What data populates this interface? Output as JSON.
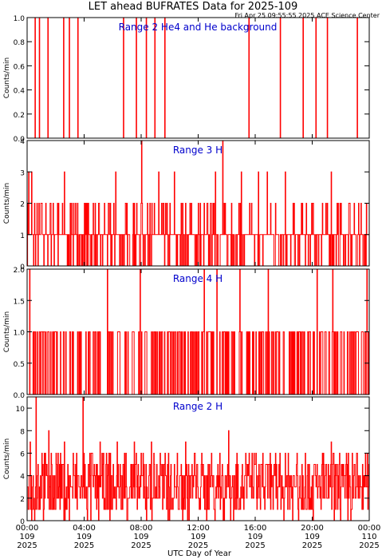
{
  "page": {
    "title": "LET ahead BUFRATES Data for 2025-109",
    "timestamp": "Fri Apr 25 09:55:55 2025 ACE Science Center",
    "xlabel": "UTC Day of Year"
  },
  "x_ticks": [
    {
      "time": "00:00",
      "day": "109",
      "year": "2025"
    },
    {
      "time": "04:00",
      "day": "109",
      "year": "2025"
    },
    {
      "time": "08:00",
      "day": "109",
      "year": "2025"
    },
    {
      "time": "12:00",
      "day": "109",
      "year": "2025"
    },
    {
      "time": "16:00",
      "day": "109",
      "year": "2025"
    },
    {
      "time": "20:00",
      "day": "109",
      "year": "2025"
    },
    {
      "time": "00:00",
      "day": "110",
      "year": "2025"
    }
  ],
  "colors": {
    "data": "#ff0000",
    "label": "#0000cc",
    "axes": "#000000"
  },
  "chart_data": [
    {
      "type": "line",
      "title": "Range 2 He4 and He background",
      "ylabel": "Counts/min",
      "ylim": [
        0,
        1.0
      ],
      "yticks": [
        "0.0",
        "0.2",
        "0.4",
        "0.6",
        "0.8",
        "1.0"
      ],
      "x_range_hours": [
        0,
        24
      ],
      "series": [
        {
          "baseline": 0,
          "spikes": [
            [
              0.55,
              1
            ],
            [
              0.85,
              1
            ],
            [
              1.45,
              1
            ],
            [
              2.55,
              1
            ],
            [
              2.95,
              1
            ],
            [
              3.55,
              1
            ],
            [
              6.75,
              1
            ],
            [
              7.65,
              1
            ],
            [
              8.35,
              1
            ],
            [
              8.95,
              1
            ],
            [
              9.65,
              1
            ],
            [
              15.55,
              1
            ],
            [
              17.75,
              1
            ],
            [
              19.35,
              1
            ],
            [
              20.25,
              1
            ],
            [
              21.05,
              1
            ],
            [
              23.15,
              1
            ]
          ]
        }
      ]
    },
    {
      "type": "line",
      "title": "Range 3 H",
      "ylabel": "Counts/min",
      "ylim": [
        0,
        4
      ],
      "yticks": [
        "0",
        "1",
        "2",
        "3",
        "4"
      ],
      "x_range_hours": [
        0,
        24
      ],
      "series": [
        {
          "baseline": 1,
          "spikes": [
            [
              0.1,
              3
            ],
            [
              0.3,
              3
            ],
            [
              0.5,
              2
            ],
            [
              1.0,
              2
            ],
            [
              1.6,
              2
            ],
            [
              2.1,
              2
            ],
            [
              2.6,
              3
            ],
            [
              3.1,
              2
            ],
            [
              3.5,
              2
            ],
            [
              4.0,
              2
            ],
            [
              4.6,
              2
            ],
            [
              5.0,
              2
            ],
            [
              5.4,
              2
            ],
            [
              6.2,
              3
            ],
            [
              6.9,
              2
            ],
            [
              7.5,
              2
            ],
            [
              8.0,
              4
            ],
            [
              8.6,
              2
            ],
            [
              9.2,
              3
            ],
            [
              9.7,
              2
            ],
            [
              10.3,
              3
            ],
            [
              10.9,
              2
            ],
            [
              11.4,
              2
            ],
            [
              12.0,
              2
            ],
            [
              12.6,
              2
            ],
            [
              13.2,
              3
            ],
            [
              13.7,
              4
            ],
            [
              14.3,
              2
            ],
            [
              15.0,
              3
            ],
            [
              15.6,
              2
            ],
            [
              16.2,
              3
            ],
            [
              16.8,
              3
            ],
            [
              17.4,
              2
            ],
            [
              18.1,
              3
            ],
            [
              18.7,
              2
            ],
            [
              19.3,
              2
            ],
            [
              20.0,
              2
            ],
            [
              20.7,
              2
            ],
            [
              21.3,
              3
            ],
            [
              22.0,
              2
            ],
            [
              22.6,
              2
            ],
            [
              23.4,
              2
            ]
          ]
        }
      ]
    },
    {
      "type": "line",
      "title": "Range 4 H",
      "ylabel": "Counts/min",
      "ylim": [
        0,
        2.0
      ],
      "yticks": [
        "0.0",
        "0.5",
        "1.0",
        "1.5",
        "2.0"
      ],
      "x_range_hours": [
        0,
        24
      ],
      "series": [
        {
          "baseline": 0,
          "spikes": [
            [
              0.15,
              2
            ],
            [
              0.4,
              1
            ],
            [
              0.7,
              1
            ],
            [
              1.1,
              1
            ],
            [
              1.5,
              1
            ],
            [
              1.9,
              1
            ],
            [
              2.3,
              1
            ],
            [
              2.7,
              1
            ],
            [
              3.2,
              1
            ],
            [
              3.7,
              1
            ],
            [
              4.1,
              1
            ],
            [
              4.6,
              1
            ],
            [
              5.0,
              1
            ],
            [
              5.6,
              2
            ],
            [
              6.0,
              1
            ],
            [
              6.4,
              1
            ],
            [
              6.9,
              1
            ],
            [
              7.4,
              1
            ],
            [
              7.9,
              2
            ],
            [
              8.3,
              1
            ],
            [
              8.8,
              1
            ],
            [
              9.3,
              1
            ],
            [
              10.0,
              1
            ],
            [
              10.5,
              1
            ],
            [
              11.0,
              1
            ],
            [
              11.5,
              1
            ],
            [
              12.0,
              1
            ],
            [
              12.4,
              2
            ],
            [
              12.9,
              1
            ],
            [
              13.3,
              2
            ],
            [
              13.8,
              1
            ],
            [
              14.3,
              1
            ],
            [
              14.9,
              2
            ],
            [
              15.6,
              1
            ],
            [
              16.3,
              1
            ],
            [
              16.9,
              2
            ],
            [
              17.5,
              1
            ],
            [
              18.0,
              1
            ],
            [
              18.6,
              1
            ],
            [
              19.1,
              1
            ],
            [
              19.7,
              1
            ],
            [
              20.3,
              2
            ],
            [
              20.9,
              1
            ],
            [
              21.4,
              2
            ],
            [
              22.0,
              1
            ],
            [
              22.6,
              1
            ],
            [
              23.2,
              1
            ],
            [
              23.8,
              2
            ]
          ]
        }
      ]
    },
    {
      "type": "line",
      "title": "Range 2 H",
      "ylabel": "Counts/min",
      "ylim": [
        0,
        11
      ],
      "yticks": [
        "0",
        "2",
        "4",
        "6",
        "8",
        "10"
      ],
      "x_range_hours": [
        0,
        24
      ],
      "series": [
        {
          "baseline": 3,
          "spikes": [
            [
              0.6,
              11
            ],
            [
              0.2,
              7
            ],
            [
              1.0,
              6
            ],
            [
              1.5,
              8
            ],
            [
              2.0,
              6
            ],
            [
              2.6,
              7
            ],
            [
              3.2,
              6
            ],
            [
              3.9,
              11
            ],
            [
              4.5,
              6
            ],
            [
              5.1,
              7
            ],
            [
              5.7,
              6
            ],
            [
              6.3,
              7
            ],
            [
              6.9,
              6
            ],
            [
              7.5,
              7
            ],
            [
              8.1,
              6
            ],
            [
              8.7,
              7
            ],
            [
              9.3,
              6
            ],
            [
              9.9,
              6
            ],
            [
              10.5,
              6
            ],
            [
              11.1,
              7
            ],
            [
              11.7,
              6
            ],
            [
              12.3,
              5
            ],
            [
              12.9,
              6
            ],
            [
              13.5,
              6
            ],
            [
              14.1,
              8
            ],
            [
              14.7,
              6
            ],
            [
              15.3,
              6
            ],
            [
              15.9,
              6
            ],
            [
              16.5,
              6
            ],
            [
              17.1,
              5
            ],
            [
              17.7,
              6
            ],
            [
              18.3,
              6
            ],
            [
              18.9,
              6
            ],
            [
              19.5,
              6
            ],
            [
              20.1,
              5
            ],
            [
              20.7,
              6
            ],
            [
              21.3,
              7
            ],
            [
              21.9,
              6
            ],
            [
              22.5,
              6
            ],
            [
              23.1,
              6
            ],
            [
              23.7,
              6
            ]
          ]
        }
      ]
    }
  ]
}
